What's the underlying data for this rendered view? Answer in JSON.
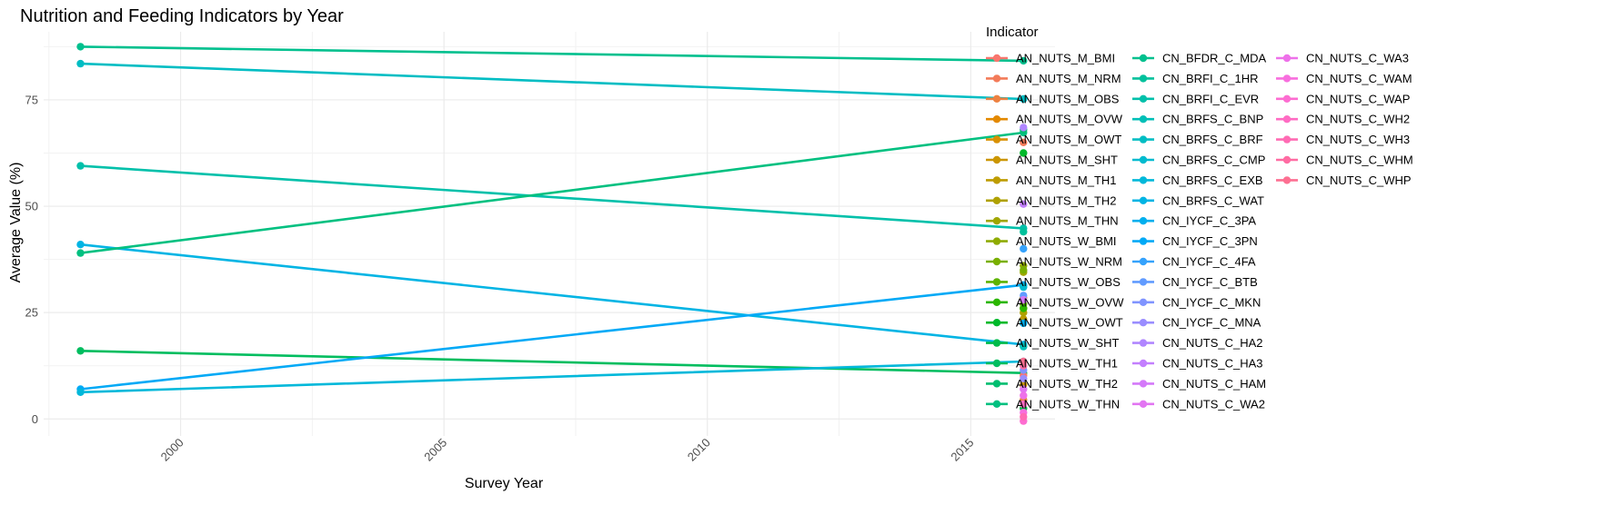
{
  "chart_data": {
    "type": "line",
    "title": "Nutrition and Feeding Indicators by Year",
    "xlabel": "Survey Year",
    "ylabel": "Average Value (%)",
    "xlim": [
      1997.4,
      2016.6
    ],
    "ylim": [
      -4,
      91
    ],
    "x_ticks": [
      2000,
      2005,
      2010,
      2015
    ],
    "y_ticks": [
      0,
      25,
      50,
      75
    ],
    "grid": true,
    "legend": {
      "title": "Indicator",
      "placement": "right",
      "entries": [
        {
          "name": "AN_NUTS_M_BMI",
          "color": "#F8766D"
        },
        {
          "name": "AN_NUTS_M_NRM",
          "color": "#F37B59"
        },
        {
          "name": "AN_NUTS_M_OBS",
          "color": "#ED8141"
        },
        {
          "name": "AN_NUTS_M_OVW",
          "color": "#E38900"
        },
        {
          "name": "AN_NUTS_M_OWT",
          "color": "#D89000"
        },
        {
          "name": "AN_NUTS_M_SHT",
          "color": "#CB9600"
        },
        {
          "name": "AN_NUTS_M_TH1",
          "color": "#BE9C00"
        },
        {
          "name": "AN_NUTS_M_TH2",
          "color": "#AFA100"
        },
        {
          "name": "AN_NUTS_M_THN",
          "color": "#A0A600"
        },
        {
          "name": "AN_NUTS_W_BMI",
          "color": "#8EAB00"
        },
        {
          "name": "AN_NUTS_W_NRM",
          "color": "#79AF00"
        },
        {
          "name": "AN_NUTS_W_OBS",
          "color": "#5EB300"
        },
        {
          "name": "AN_NUTS_W_OVW",
          "color": "#2BB600"
        },
        {
          "name": "AN_NUTS_W_OWT",
          "color": "#00B92A"
        },
        {
          "name": "AN_NUTS_W_SHT",
          "color": "#00BB4B"
        },
        {
          "name": "AN_NUTS_W_TH1",
          "color": "#00BD5F"
        },
        {
          "name": "AN_NUTS_W_TH2",
          "color": "#00BE70"
        },
        {
          "name": "AN_NUTS_W_THN",
          "color": "#00C080"
        },
        {
          "name": "CN_BFDR_C_MDA",
          "color": "#00C08E"
        },
        {
          "name": "CN_BRFI_C_1HR",
          "color": "#00C19C"
        },
        {
          "name": "CN_BRFI_C_EVR",
          "color": "#00C0AA"
        },
        {
          "name": "CN_BRFS_C_BNP",
          "color": "#00BFB7"
        },
        {
          "name": "CN_BRFS_C_BRF",
          "color": "#00BDC3"
        },
        {
          "name": "CN_BRFS_C_CMP",
          "color": "#00BBCF"
        },
        {
          "name": "CN_BRFS_C_EXB",
          "color": "#00B8DA"
        },
        {
          "name": "CN_BRFS_C_WAT",
          "color": "#00B4E4"
        },
        {
          "name": "CN_IYCF_C_3PA",
          "color": "#00AFEE"
        },
        {
          "name": "CN_IYCF_C_3PN",
          "color": "#00A9F6"
        },
        {
          "name": "CN_IYCF_C_4FA",
          "color": "#35A2FC"
        },
        {
          "name": "CN_IYCF_C_BTB",
          "color": "#619BFF"
        },
        {
          "name": "CN_IYCF_C_MKN",
          "color": "#8094FF"
        },
        {
          "name": "CN_IYCF_C_MNA",
          "color": "#9A8DFF"
        },
        {
          "name": "CN_NUTS_C_HA2",
          "color": "#B086FF"
        },
        {
          "name": "CN_NUTS_C_HA3",
          "color": "#C37FFE"
        },
        {
          "name": "CN_NUTS_C_HAM",
          "color": "#D479F9"
        },
        {
          "name": "CN_NUTS_C_WA2",
          "color": "#E275F2"
        },
        {
          "name": "CN_NUTS_C_WA3",
          "color": "#EE71E9"
        },
        {
          "name": "CN_NUTS_C_WAM",
          "color": "#F86EDE"
        },
        {
          "name": "CN_NUTS_C_WAP",
          "color": "#FD6DD1"
        },
        {
          "name": "CN_NUTS_C_WH2",
          "color": "#FF6CC3"
        },
        {
          "name": "CN_NUTS_C_WH3",
          "color": "#FF6BB4"
        },
        {
          "name": "CN_NUTS_C_WHM",
          "color": "#FF6CA3"
        },
        {
          "name": "CN_NUTS_C_WHP",
          "color": "#FD6F92"
        }
      ]
    },
    "series": [
      {
        "name": "CN_BFDR_C_MDA",
        "color": "#00C08E",
        "points": [
          [
            1998.1,
            87.5
          ],
          [
            2016,
            84.2
          ]
        ]
      },
      {
        "name": "CN_BRFS_C_BRF",
        "color": "#00BDC3",
        "points": [
          [
            1998.1,
            83.5
          ],
          [
            2016,
            75.2
          ]
        ]
      },
      {
        "name": "CN_BRFI_C_EVR",
        "color": "#00C0AA",
        "points": [
          [
            1998.1,
            59.5
          ],
          [
            2016,
            44.8
          ]
        ]
      },
      {
        "name": "CN_BRFS_C_WAT",
        "color": "#00B4E4",
        "points": [
          [
            1998.1,
            41.0
          ],
          [
            2016,
            17.5
          ]
        ]
      },
      {
        "name": "AN_NUTS_W_THN",
        "color": "#00C080",
        "points": [
          [
            1998.1,
            39.0
          ],
          [
            2016,
            67.3
          ]
        ]
      },
      {
        "name": "AN_NUTS_W_TH1",
        "color": "#00BD5F",
        "points": [
          [
            1998.1,
            16.0
          ],
          [
            2016,
            10.8
          ]
        ]
      },
      {
        "name": "CN_IYCF_C_3PN",
        "color": "#00A9F6",
        "points": [
          [
            1998.1,
            7.0
          ],
          [
            2016,
            31.5
          ]
        ]
      },
      {
        "name": "CN_BRFS_C_EXB",
        "color": "#00B8DA",
        "points": [
          [
            1998.1,
            6.3
          ],
          [
            2016,
            13.5
          ]
        ]
      },
      {
        "name": "AN_NUTS_M_BMI",
        "color": "#F8766D",
        "points": [
          [
            2016,
            10.2
          ]
        ]
      },
      {
        "name": "AN_NUTS_M_NRM",
        "color": "#F37B59",
        "points": [
          [
            2016,
            65.0
          ]
        ]
      },
      {
        "name": "AN_NUTS_M_OBS",
        "color": "#ED8141",
        "points": [
          [
            2016,
            4.5
          ]
        ]
      },
      {
        "name": "AN_NUTS_M_OVW",
        "color": "#E38900",
        "points": [
          [
            2016,
            26.0
          ]
        ]
      },
      {
        "name": "AN_NUTS_M_OWT",
        "color": "#D89000",
        "points": [
          [
            2016,
            28.5
          ]
        ]
      },
      {
        "name": "AN_NUTS_M_SHT",
        "color": "#CB9600",
        "points": [
          [
            2016,
            8.0
          ]
        ]
      },
      {
        "name": "AN_NUTS_M_TH1",
        "color": "#BE9C00",
        "points": [
          [
            2016,
            23.5
          ]
        ]
      },
      {
        "name": "AN_NUTS_M_TH2",
        "color": "#AFA100",
        "points": [
          [
            2016,
            25.0
          ]
        ]
      },
      {
        "name": "AN_NUTS_M_THN",
        "color": "#A0A600",
        "points": [
          [
            2016,
            34.5
          ]
        ]
      },
      {
        "name": "AN_NUTS_W_BMI",
        "color": "#8EAB00",
        "points": [
          [
            2016,
            36.0
          ]
        ]
      },
      {
        "name": "AN_NUTS_W_NRM",
        "color": "#79AF00",
        "points": [
          [
            2016,
            35.0
          ]
        ]
      },
      {
        "name": "AN_NUTS_W_OBS",
        "color": "#5EB300",
        "points": [
          [
            2016,
            27.0
          ]
        ]
      },
      {
        "name": "AN_NUTS_W_OVW",
        "color": "#2BB600",
        "points": [
          [
            2016,
            26.0
          ]
        ]
      },
      {
        "name": "AN_NUTS_W_OWT",
        "color": "#00B92A",
        "points": [
          [
            2016,
            62.5
          ]
        ]
      },
      {
        "name": "AN_NUTS_W_SHT",
        "color": "#00BB4B",
        "points": [
          [
            2016,
            2.5
          ]
        ]
      },
      {
        "name": "AN_NUTS_W_TH2",
        "color": "#00BE70",
        "points": [
          [
            2016,
            68.0
          ]
        ]
      },
      {
        "name": "CN_BRFI_C_1HR",
        "color": "#00C19C",
        "points": [
          [
            2016,
            44.0
          ]
        ]
      },
      {
        "name": "CN_BRFS_C_BNP",
        "color": "#00BFB7",
        "points": [
          [
            2016,
            17.0
          ]
        ]
      },
      {
        "name": "CN_BRFS_C_CMP",
        "color": "#00BBCF",
        "points": [
          [
            2016,
            31.0
          ]
        ]
      },
      {
        "name": "CN_IYCF_C_3PA",
        "color": "#00AFEE",
        "points": [
          [
            2016,
            22.5
          ]
        ]
      },
      {
        "name": "CN_IYCF_C_4FA",
        "color": "#35A2FC",
        "points": [
          [
            2016,
            40.0
          ]
        ]
      },
      {
        "name": "CN_IYCF_C_BTB",
        "color": "#619BFF",
        "points": [
          [
            2016,
            29.0
          ]
        ]
      },
      {
        "name": "CN_IYCF_C_MKN",
        "color": "#8094FF",
        "points": [
          [
            2016,
            11.5
          ]
        ]
      },
      {
        "name": "CN_IYCF_C_MNA",
        "color": "#9A8DFF",
        "points": [
          [
            2016,
            9.5
          ]
        ]
      },
      {
        "name": "CN_NUTS_C_HA2",
        "color": "#B086FF",
        "points": [
          [
            2016,
            68.5
          ]
        ]
      },
      {
        "name": "CN_NUTS_C_HA3",
        "color": "#C37FFE",
        "points": [
          [
            2016,
            50.5
          ]
        ]
      },
      {
        "name": "CN_NUTS_C_HAM",
        "color": "#D479F9",
        "points": [
          [
            2016,
            28.0
          ]
        ]
      },
      {
        "name": "CN_NUTS_C_WA2",
        "color": "#E275F2",
        "points": [
          [
            2016,
            7.0
          ]
        ]
      },
      {
        "name": "CN_NUTS_C_WA3",
        "color": "#EE71E9",
        "points": [
          [
            2016,
            5.5
          ]
        ]
      },
      {
        "name": "CN_NUTS_C_WAM",
        "color": "#F86EDE",
        "points": [
          [
            2016,
            1.5
          ]
        ]
      },
      {
        "name": "CN_NUTS_C_WAP",
        "color": "#FD6DD1",
        "points": [
          [
            2016,
            -0.5
          ]
        ]
      },
      {
        "name": "CN_NUTS_C_WH2",
        "color": "#FF6CC3",
        "points": [
          [
            2016,
            3.5
          ]
        ]
      },
      {
        "name": "CN_NUTS_C_WH3",
        "color": "#FF6BB4",
        "points": [
          [
            2016,
            0.5
          ]
        ]
      },
      {
        "name": "CN_NUTS_C_WHM",
        "color": "#FF6CA3",
        "points": [
          [
            2016,
            12.5
          ]
        ]
      },
      {
        "name": "CN_NUTS_C_WHP",
        "color": "#FD6F92",
        "points": [
          [
            2016,
            13.5
          ]
        ]
      }
    ]
  }
}
